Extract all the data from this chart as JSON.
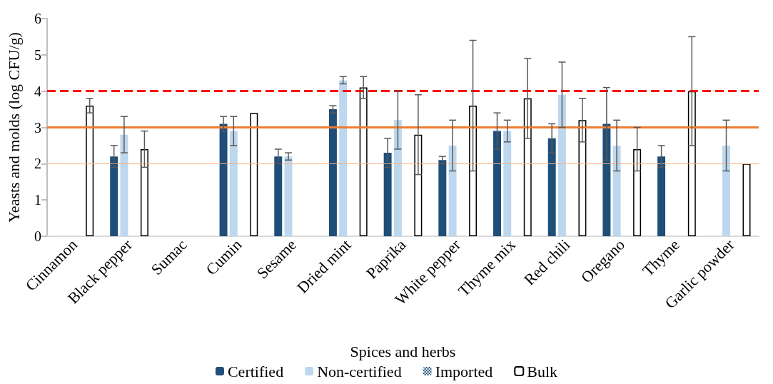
{
  "chart_data": {
    "type": "bar",
    "xlabel": "Spices and herbs",
    "ylabel": "Yeasts and molds (log CFU/g)",
    "categories": [
      "Cinnamon",
      "Black pepper",
      "Sumac",
      "Cumin",
      "Sesame",
      "Dried mint",
      "Paprika",
      "White pepper",
      "Thyme mix",
      "Red chili",
      "Oregano",
      "Thyme",
      "Garlic powder"
    ],
    "series": [
      {
        "name": "Certified",
        "color": "#1f4e79",
        "values": [
          null,
          2.2,
          null,
          3.1,
          2.2,
          3.5,
          2.3,
          2.1,
          2.9,
          2.7,
          3.1,
          2.2,
          null
        ],
        "errors": [
          null,
          [
            1.9,
            2.5
          ],
          null,
          [
            2.9,
            3.3
          ],
          [
            2.0,
            2.4
          ],
          [
            3.4,
            3.6
          ],
          [
            1.9,
            2.7
          ],
          [
            2.0,
            2.2
          ],
          [
            2.4,
            3.4
          ],
          [
            2.3,
            3.1
          ],
          [
            2.1,
            4.1
          ],
          [
            1.9,
            2.5
          ],
          null
        ]
      },
      {
        "name": "Non-certified",
        "color": "#bdd7ee",
        "values": [
          null,
          2.8,
          null,
          2.9,
          2.2,
          4.3,
          3.2,
          2.5,
          2.9,
          3.9,
          2.5,
          null,
          2.5
        ],
        "errors": [
          null,
          [
            2.3,
            3.3
          ],
          null,
          [
            2.5,
            3.3
          ],
          [
            2.1,
            2.3
          ],
          [
            4.2,
            4.4
          ],
          [
            2.4,
            4.0
          ],
          [
            1.8,
            3.2
          ],
          [
            2.6,
            3.2
          ],
          [
            3.0,
            4.8
          ],
          [
            1.8,
            3.2
          ],
          null,
          [
            1.8,
            3.2
          ]
        ]
      },
      {
        "name": "Imported",
        "color": "#1f4e79",
        "values": [
          null,
          null,
          null,
          null,
          null,
          null,
          null,
          null,
          null,
          null,
          null,
          null,
          null
        ]
      },
      {
        "name": "Bulk",
        "color": "#ffffff",
        "values": [
          3.6,
          2.4,
          null,
          3.4,
          null,
          4.1,
          2.8,
          3.6,
          3.8,
          3.2,
          2.4,
          4.0,
          2.0
        ],
        "errors": [
          [
            3.4,
            3.8
          ],
          [
            1.9,
            2.9
          ],
          null,
          null,
          null,
          [
            3.8,
            4.4
          ],
          [
            1.7,
            3.9
          ],
          [
            1.8,
            5.4
          ],
          [
            2.7,
            4.9
          ],
          [
            2.6,
            3.8
          ],
          [
            1.8,
            3.0
          ],
          [
            2.5,
            5.5
          ],
          null
        ]
      }
    ],
    "ylim": [
      0,
      6
    ],
    "yticks": [
      0,
      1,
      2,
      3,
      4,
      5,
      6
    ],
    "grid": false,
    "legend": "bottom",
    "ref_lines": [
      {
        "axis": "y",
        "value": 4,
        "color": "#ff0000",
        "line_style": "dashed"
      },
      {
        "axis": "y",
        "value": 3,
        "color": "#ed7d31",
        "line_style": "solid"
      },
      {
        "axis": "y",
        "value": 2,
        "color": "#f4b183",
        "line_style": "solid"
      }
    ]
  }
}
